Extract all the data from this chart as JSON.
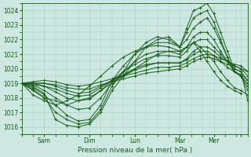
{
  "xlabel": "Pression niveau de la mer( hPa )",
  "bg_color": "#cce8e0",
  "grid_color": "#a8c8c0",
  "line_color": "#1a5c1a",
  "ylim": [
    1015.5,
    1024.5
  ],
  "yticks": [
    1016,
    1017,
    1018,
    1019,
    1020,
    1021,
    1022,
    1023,
    1024
  ],
  "xlim": [
    0,
    100
  ],
  "xtick_positions": [
    10,
    30,
    50,
    70,
    85,
    97
  ],
  "xtick_labels": [
    "Sam",
    "Dim",
    "Lun",
    "Mar",
    "Mer",
    ""
  ],
  "marker": "+",
  "markersize": 2.5,
  "linewidth": 0.7,
  "curves": [
    {
      "x": [
        0,
        5,
        10,
        15,
        20,
        25,
        30,
        35,
        40,
        45,
        50,
        55,
        60,
        65,
        70,
        73,
        76,
        79,
        82,
        85,
        88,
        91,
        94,
        97,
        100
      ],
      "y": [
        1019.0,
        1018.8,
        1018.3,
        1016.5,
        1016.1,
        1016.0,
        1016.2,
        1017.0,
        1018.5,
        1019.5,
        1020.5,
        1021.5,
        1022.0,
        1022.2,
        1021.5,
        1022.8,
        1024.0,
        1024.2,
        1024.5,
        1023.8,
        1022.5,
        1021.2,
        1020.0,
        1019.8,
        1017.8
      ]
    },
    {
      "x": [
        0,
        5,
        10,
        15,
        20,
        25,
        30,
        35,
        40,
        45,
        50,
        55,
        60,
        65,
        70,
        73,
        76,
        79,
        82,
        85,
        88,
        91,
        94,
        97,
        100
      ],
      "y": [
        1019.0,
        1018.6,
        1018.0,
        1017.0,
        1016.5,
        1016.2,
        1016.3,
        1017.2,
        1018.8,
        1019.8,
        1021.0,
        1021.8,
        1022.2,
        1022.0,
        1021.5,
        1022.5,
        1023.5,
        1023.8,
        1024.0,
        1023.2,
        1022.0,
        1020.8,
        1019.8,
        1019.5,
        1018.5
      ]
    },
    {
      "x": [
        0,
        5,
        10,
        15,
        20,
        25,
        30,
        35,
        40,
        45,
        50,
        55,
        60,
        65,
        70,
        73,
        76,
        79,
        82,
        85,
        88,
        91,
        94,
        97,
        100
      ],
      "y": [
        1019.0,
        1018.7,
        1018.2,
        1017.5,
        1016.8,
        1016.4,
        1016.5,
        1017.5,
        1019.2,
        1020.2,
        1021.0,
        1021.5,
        1021.8,
        1021.8,
        1021.5,
        1022.0,
        1022.8,
        1023.2,
        1023.5,
        1022.8,
        1021.8,
        1020.8,
        1019.8,
        1019.5,
        1018.8
      ]
    },
    {
      "x": [
        0,
        5,
        10,
        15,
        20,
        25,
        30,
        35,
        40,
        45,
        50,
        55,
        60,
        65,
        70,
        73,
        76,
        79,
        82,
        85,
        88,
        91,
        94,
        97,
        100
      ],
      "y": [
        1019.0,
        1018.9,
        1018.5,
        1018.0,
        1017.5,
        1017.2,
        1017.3,
        1018.0,
        1019.0,
        1019.8,
        1020.5,
        1021.0,
        1021.2,
        1021.2,
        1021.0,
        1021.5,
        1022.2,
        1022.5,
        1022.5,
        1022.0,
        1021.2,
        1020.5,
        1019.8,
        1019.5,
        1019.0
      ]
    },
    {
      "x": [
        0,
        5,
        10,
        15,
        20,
        25,
        30,
        35,
        40,
        45,
        50,
        55,
        60,
        65,
        70,
        73,
        76,
        79,
        82,
        85,
        88,
        91,
        94,
        97,
        100
      ],
      "y": [
        1019.0,
        1019.0,
        1018.8,
        1018.4,
        1018.0,
        1017.8,
        1017.9,
        1018.5,
        1019.2,
        1019.8,
        1020.3,
        1020.7,
        1020.9,
        1020.9,
        1020.8,
        1021.2,
        1021.8,
        1022.0,
        1022.0,
        1021.5,
        1021.0,
        1020.5,
        1020.0,
        1019.8,
        1019.2
      ]
    },
    {
      "x": [
        0,
        5,
        10,
        15,
        20,
        25,
        30,
        35,
        40,
        45,
        50,
        55,
        60,
        65,
        70,
        73,
        76,
        79,
        82,
        85,
        88,
        91,
        94,
        97,
        100
      ],
      "y": [
        1019.0,
        1019.0,
        1019.0,
        1018.8,
        1018.5,
        1018.3,
        1018.4,
        1018.8,
        1019.2,
        1019.5,
        1019.9,
        1020.2,
        1020.4,
        1020.4,
        1020.4,
        1020.7,
        1021.2,
        1021.5,
        1021.5,
        1021.2,
        1020.8,
        1020.5,
        1020.2,
        1020.0,
        1019.5
      ]
    },
    {
      "x": [
        0,
        5,
        10,
        15,
        20,
        25,
        30,
        35,
        40,
        45,
        50,
        55,
        60,
        65,
        70,
        73,
        76,
        79,
        82,
        85,
        88,
        91,
        94,
        97,
        100
      ],
      "y": [
        1019.0,
        1019.1,
        1019.2,
        1019.1,
        1018.9,
        1018.8,
        1018.9,
        1019.1,
        1019.3,
        1019.5,
        1019.7,
        1019.9,
        1020.1,
        1020.1,
        1020.2,
        1020.4,
        1020.7,
        1020.9,
        1021.0,
        1020.9,
        1020.7,
        1020.5,
        1020.3,
        1020.2,
        1019.8
      ]
    },
    {
      "x": [
        0,
        5,
        10,
        15,
        20,
        25,
        30,
        35,
        40,
        45,
        50,
        55,
        60,
        65,
        70,
        73,
        76,
        79,
        82,
        85,
        88,
        91,
        94,
        97,
        100
      ],
      "y": [
        1019.0,
        1018.9,
        1018.8,
        1018.6,
        1018.3,
        1018.1,
        1018.2,
        1018.7,
        1019.2,
        1019.6,
        1020.0,
        1020.3,
        1020.4,
        1020.4,
        1020.4,
        1020.6,
        1021.0,
        1021.2,
        1021.2,
        1020.9,
        1020.5,
        1020.1,
        1019.8,
        1019.6,
        1019.2
      ]
    },
    {
      "x": [
        0,
        5,
        10,
        15,
        20,
        25,
        30,
        35,
        40,
        45,
        50,
        55,
        60,
        65,
        70,
        73,
        76,
        79,
        82,
        85,
        88,
        91,
        94,
        97,
        100
      ],
      "y": [
        1019.0,
        1019.0,
        1019.0,
        1018.9,
        1018.7,
        1018.6,
        1018.6,
        1018.9,
        1019.1,
        1019.3,
        1019.5,
        1019.7,
        1019.8,
        1019.9,
        1020.0,
        1020.2,
        1020.5,
        1020.7,
        1020.8,
        1020.7,
        1020.5,
        1020.3,
        1020.2,
        1020.0,
        1019.8
      ]
    },
    {
      "x": [
        0,
        5,
        10,
        15,
        20,
        25,
        30,
        35,
        40,
        45,
        50,
        55,
        60,
        65,
        70,
        73,
        76,
        79,
        82,
        85,
        88,
        91,
        94,
        97,
        100
      ],
      "y": [
        1019.0,
        1018.5,
        1018.0,
        1017.8,
        1017.5,
        1017.8,
        1018.0,
        1018.5,
        1019.0,
        1019.5,
        1020.0,
        1020.5,
        1021.0,
        1021.2,
        1021.2,
        1021.5,
        1021.8,
        1021.5,
        1021.0,
        1020.5,
        1019.8,
        1019.2,
        1018.7,
        1018.5,
        1018.2
      ]
    },
    {
      "x": [
        0,
        5,
        10,
        15,
        20,
        25,
        30,
        35,
        40,
        45,
        50,
        55,
        60,
        65,
        70,
        73,
        76,
        79,
        82,
        85,
        88,
        91,
        94,
        97
      ],
      "y": [
        1019.0,
        1018.2,
        1017.8,
        1017.5,
        1017.8,
        1018.2,
        1018.8,
        1019.5,
        1020.2,
        1020.8,
        1021.2,
        1021.5,
        1021.6,
        1021.5,
        1021.2,
        1021.5,
        1021.8,
        1021.2,
        1020.5,
        1019.8,
        1019.2,
        1018.8,
        1018.5,
        1018.3
      ]
    }
  ]
}
